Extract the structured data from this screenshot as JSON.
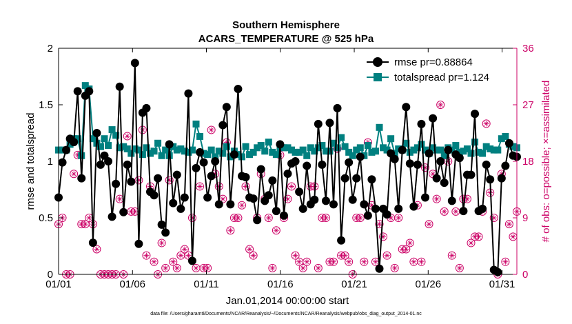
{
  "chart_data": {
    "type": "line",
    "title": "Southern Hemisphere",
    "subtitle": "ACARS_TEMPERATURE @ 525 hPa",
    "xlabel": "Jan.01,2014 00:00:00 start",
    "ylabel": "rmse and totalspread",
    "y2label": "# of obs: o=possible; ×=assimilated",
    "footnote": "data file: /Users/gharamti/Documents/NCAR/Reanalysis/~/Documents/NCAR/Reanalysis/webpub/obs_diag_output_2014-01.nc",
    "xlim": [
      1,
      32
    ],
    "ylim": [
      0,
      2
    ],
    "y2lim": [
      0,
      36
    ],
    "xticks": [
      1,
      6,
      11,
      16,
      21,
      26,
      31
    ],
    "xtick_labels": [
      "01/01",
      "01/06",
      "01/11",
      "01/16",
      "01/21",
      "01/26",
      "01/31"
    ],
    "yticks": [
      0,
      0.5,
      1,
      1.5,
      2
    ],
    "ytick_labels": [
      "0",
      "0.5",
      "1",
      "1.5",
      "2"
    ],
    "y2ticks": [
      0,
      9,
      18,
      27,
      36
    ],
    "y2tick_labels": [
      "0",
      "9",
      "18",
      "27",
      "36"
    ],
    "grid": false,
    "legend_position": "top-right",
    "colors": {
      "rmse": "#000000",
      "totalspread": "#008080",
      "obs": "#cc0066",
      "axis_left": "#000000",
      "axis_right": "#cc0066"
    },
    "series": [
      {
        "name": "rmse pr=0.88864",
        "values": [
          0.68,
          0.99,
          1.1,
          1.2,
          1.17,
          1.62,
          0.85,
          1.58,
          1.62,
          0.28,
          1.25,
          0.97,
          1.05,
          1.0,
          0.51,
          0.8,
          1.66,
          0.55,
          0.97,
          0.82,
          1.87,
          0.27,
          1.43,
          1.47,
          0.73,
          0.7,
          0.85,
          0.44,
          0.37,
          1.15,
          0.63,
          0.88,
          0.58,
          0.68,
          1.6,
          0.12,
          0.94,
          1.08,
          0.99,
          0.68,
          0.87,
          1.0,
          0.62,
          1.32,
          1.48,
          0.62,
          1.06,
          1.64,
          0.87,
          0.86,
          0.68,
          0.67,
          0.48,
          0.93,
          0.65,
          0.7,
          0.83,
          0.56,
          1.15,
          0.52,
          0.89,
          0.98,
          1.0,
          0.73,
          0.58,
          0.96,
          0.62,
          0.66,
          1.33,
          0.97,
          0.65,
          1.34,
          0.62,
          1.47,
          0.3,
          0.85,
          0.99,
          0.66,
          0.85,
          1.04,
          0.62,
          0.52,
          0.84,
          0.58,
          0.05,
          0.58,
          0.53,
          1.07,
          1.02,
          0.58,
          1.1,
          1.48,
          0.98,
          0.6,
          0.97,
          1.33,
          0.68,
          1.07,
          1.38,
          0.85,
          1.0,
          0.81,
          1.1,
          0.65,
          1.06,
          1.03,
          0.56,
          0.88,
          0.88,
          1.42,
          0.56,
          0.58,
          0.97,
          0.84,
          0.04,
          0.02,
          0.85,
          0.96,
          1.16,
          1.05,
          1.04
        ]
      },
      {
        "name": "totalspread pr=1.124",
        "values": [
          1.1,
          1.1,
          1.1,
          1.15,
          1.2,
          1.2,
          1.05,
          1.67,
          1.64,
          1.2,
          1.16,
          1.13,
          1.2,
          1.14,
          1.28,
          1.23,
          1.12,
          1.13,
          1.11,
          1.07,
          1.11,
          1.1,
          1.06,
          1.12,
          1.07,
          1.09,
          1.16,
          1.05,
          1.1,
          1.05,
          1.13,
          1.1,
          1.11,
          1.09,
          1.08,
          1.1,
          1.33,
          1.22,
          1.07,
          1.06,
          1.1,
          1.04,
          1.09,
          1.07,
          1.13,
          1.04,
          1.09,
          1.06,
          1.04,
          1.13,
          1.06,
          1.08,
          1.12,
          1.14,
          1.09,
          1.17,
          1.08,
          1.06,
          1.12,
          1.12,
          1.12,
          1.1,
          1.08,
          1.08,
          1.1,
          1.05,
          1.12,
          1.09,
          1.12,
          1.14,
          1.09,
          1.09,
          1.16,
          1.12,
          1.21,
          1.13,
          1.08,
          1.05,
          1.1,
          1.12,
          1.05,
          1.14,
          1.08,
          1.09,
          1.3,
          1.12,
          1.1,
          1.2,
          1.07,
          1.11,
          1.1,
          1.16,
          1.08,
          1.1,
          1.12,
          1.15,
          1.1,
          1.07,
          1.12,
          1.1,
          1.1,
          1.05,
          1.12,
          1.1,
          1.14,
          1.08,
          1.09,
          1.11,
          1.07,
          1.17,
          1.08,
          1.07,
          1.13,
          1.11,
          1.1,
          1.1,
          1.2,
          1.22,
          1.15,
          1.13,
          1.12
        ]
      },
      {
        "name": "",
        "axis": "right",
        "marker": "o",
        "values": [
          8,
          9,
          0,
          0,
          16,
          19,
          8,
          8,
          9,
          8,
          4,
          0,
          0,
          0,
          0,
          0,
          12,
          0,
          22,
          10,
          10,
          15,
          23,
          3,
          14,
          2,
          0,
          5,
          1,
          15,
          2,
          1,
          3,
          4,
          3,
          9,
          1,
          14,
          1,
          1,
          23,
          16,
          14,
          12,
          21,
          7,
          9,
          9,
          11,
          14,
          4,
          3,
          9,
          16,
          12,
          9,
          1,
          7,
          19,
          9,
          12,
          14,
          3,
          2,
          1,
          2,
          14,
          14,
          1,
          9,
          9,
          2,
          2,
          20,
          3,
          3,
          2,
          0,
          9,
          9,
          2,
          21,
          11,
          2,
          8,
          6,
          3,
          9,
          1,
          9,
          4,
          4,
          5,
          2,
          11,
          2,
          17,
          8,
          16,
          12,
          27,
          10,
          18,
          3,
          10,
          1,
          12,
          12,
          5,
          6,
          6,
          10,
          24,
          13,
          9,
          0,
          16,
          2,
          8,
          6,
          10
        ]
      }
    ],
    "legend": [
      "rmse pr=0.88864",
      "totalspread pr=1.124"
    ],
    "annotations": []
  }
}
